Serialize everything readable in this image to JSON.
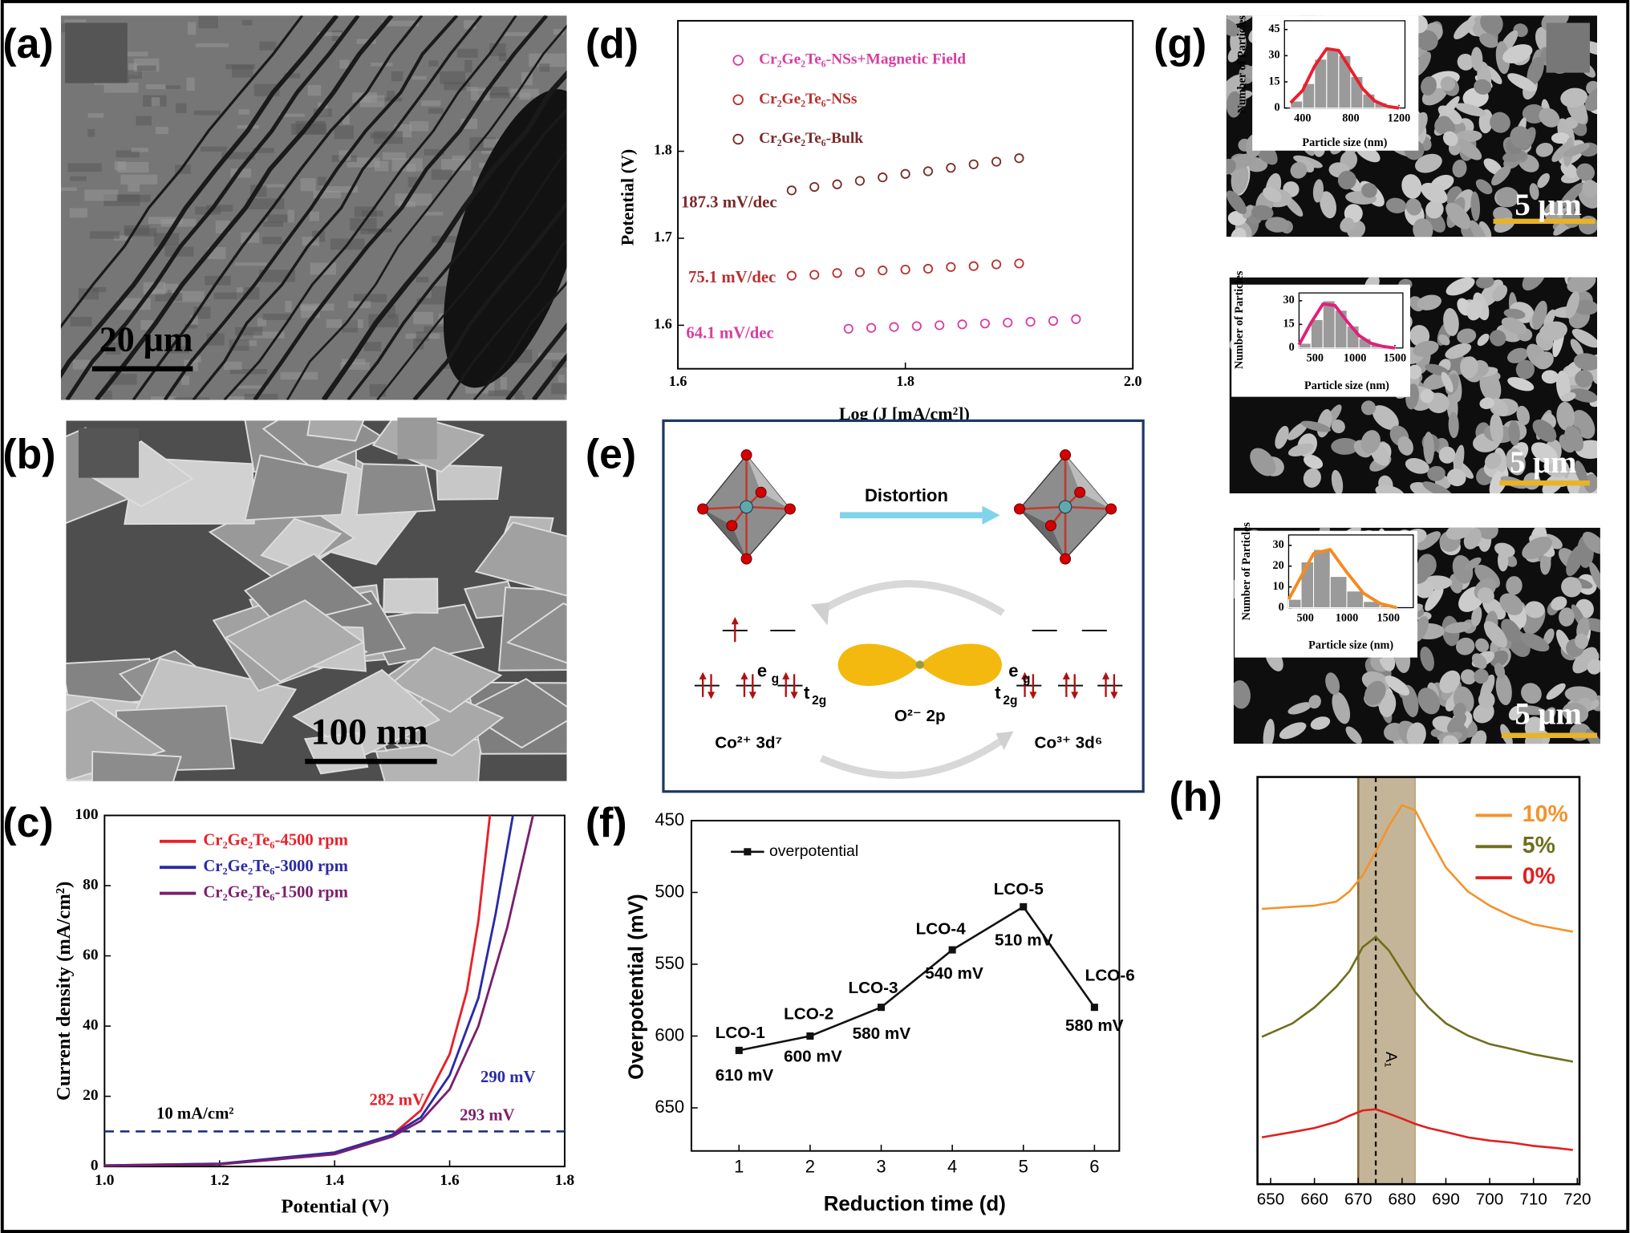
{
  "panels": [
    "(a)",
    "(b)",
    "(c)",
    "(d)",
    "(e)",
    "(f)",
    "(g)",
    "(h)"
  ],
  "scale_bars": [
    "20 μm",
    "100 nm",
    "5 μm",
    "5 μm",
    "5 μm"
  ],
  "diagram": {
    "arrow": "Distortion",
    "left_state": "Co²⁺ 3d⁷",
    "right_state": "Co³⁺ 3d⁶",
    "orbital": "O²⁻ 2p",
    "eg": {
      "main": "e",
      "sub": "g"
    },
    "t2g": {
      "main": "t",
      "sub": "2g"
    }
  },
  "chart_data": [
    {
      "type": "line",
      "xlabel": "Potential (V)",
      "ylabel": "Current density (mA/cm²)",
      "xlim": [
        1.0,
        1.8
      ],
      "ylim": [
        0,
        100
      ],
      "xticks": [
        {
          "value": 1,
          "label": "1.0"
        },
        {
          "value": 1.2,
          "label": "1.2"
        },
        {
          "value": 1.4,
          "label": "1.4"
        },
        {
          "value": 1.6,
          "label": "1.6"
        },
        {
          "value": 1.8,
          "label": "1.8"
        }
      ],
      "yticks": [
        0,
        20,
        40,
        60,
        80,
        100
      ],
      "legend": "upper left",
      "series": [
        {
          "name": "Cr₂Ge₂Te₆-4500 rpm",
          "color": "#e8202a",
          "x": [
            1.0,
            1.2,
            1.3,
            1.4,
            1.5,
            1.55,
            1.6,
            1.63,
            1.65,
            1.67
          ],
          "values": [
            0.3,
            0.8,
            2,
            4,
            9,
            16,
            32,
            50,
            70,
            100
          ]
        },
        {
          "name": "Cr₂Ge₂Te₆-3000 rpm",
          "color": "#2a2aa8",
          "x": [
            1.0,
            1.2,
            1.4,
            1.5,
            1.55,
            1.6,
            1.65,
            1.68,
            1.71
          ],
          "values": [
            0.3,
            0.8,
            4,
            9,
            14,
            26,
            48,
            72,
            100
          ]
        },
        {
          "name": "Cr₂Ge₂Te₆-1500 rpm",
          "color": "#7a1f6e",
          "x": [
            1.0,
            1.2,
            1.4,
            1.5,
            1.55,
            1.6,
            1.65,
            1.7,
            1.745
          ],
          "values": [
            0.2,
            0.6,
            3.5,
            8.5,
            13,
            22,
            40,
            68,
            100
          ]
        }
      ],
      "reference_line": {
        "value": 10,
        "label": "10 mA/cm²"
      },
      "annotations": [
        "282 mV",
        "290 mV",
        "293 mV"
      ]
    },
    {
      "type": "scatter",
      "xlabel": "Log (J [mA/cm²])",
      "ylabel": "Potential (V)",
      "xlim": [
        1.6,
        2.0
      ],
      "ylim": [
        1.55,
        1.95
      ],
      "xticks": [
        {
          "value": 1.6,
          "label": "1.6"
        },
        {
          "value": 1.8,
          "label": "1.8"
        },
        {
          "value": 2,
          "label": "2.0"
        }
      ],
      "yticks": [
        {
          "value": 1.6,
          "label": "1.6"
        },
        {
          "value": 1.7,
          "label": "1.7"
        },
        {
          "value": 1.8,
          "label": "1.8"
        }
      ],
      "legend": "upper left",
      "series": [
        {
          "name": "Cr₂Ge₂Te₆-NSs+Magnetic Field",
          "color": "#d63fa0",
          "x": [
            1.75,
            1.77,
            1.79,
            1.81,
            1.83,
            1.85,
            1.87,
            1.89,
            1.91,
            1.93,
            1.95
          ],
          "values": [
            1.596,
            1.597,
            1.598,
            1.599,
            1.6,
            1.601,
            1.602,
            1.603,
            1.604,
            1.605,
            1.607
          ]
        },
        {
          "name": "Cr₂Ge₂Te₆-NSs",
          "color": "#b83030",
          "x": [
            1.7,
            1.72,
            1.74,
            1.76,
            1.78,
            1.8,
            1.82,
            1.84,
            1.86,
            1.88,
            1.9
          ],
          "values": [
            1.657,
            1.658,
            1.66,
            1.661,
            1.663,
            1.664,
            1.665,
            1.667,
            1.668,
            1.67,
            1.671
          ]
        },
        {
          "name": "Cr₂Ge₂Te₆-Bulk",
          "color": "#7a2a2a",
          "x": [
            1.7,
            1.72,
            1.74,
            1.76,
            1.78,
            1.8,
            1.82,
            1.84,
            1.86,
            1.88,
            1.9
          ],
          "values": [
            1.755,
            1.759,
            1.762,
            1.766,
            1.77,
            1.774,
            1.777,
            1.781,
            1.785,
            1.788,
            1.792
          ]
        }
      ],
      "annotations": [
        "64.1 mV/dec",
        "75.1 mV/dec",
        "187.3 mV/dec"
      ]
    },
    {
      "type": "line",
      "xlabel": "Reduction time (d)",
      "ylabel": "Overpotential (mV)",
      "xlim": [
        0.33,
        6.35
      ],
      "ylim": [
        450,
        680
      ],
      "y_inverted": true,
      "xticks": [
        1,
        2,
        3,
        4,
        5,
        6
      ],
      "yticks": [
        450,
        500,
        550,
        600,
        650
      ],
      "legend": "upper left",
      "markers": true,
      "x": [
        1,
        2,
        3,
        4,
        5,
        6
      ],
      "point_labels": [
        "LCO-1",
        "LCO-2",
        "LCO-3",
        "LCO-4",
        "LCO-5",
        "LCO-6"
      ],
      "series": [
        {
          "name": "overpotential",
          "color": "#111111",
          "values": [
            610,
            600,
            580,
            540,
            510,
            580
          ],
          "value_labels": [
            "610 mV",
            "600 mV",
            "580 mV",
            "540 mV",
            "510 mV",
            "580 mV"
          ]
        }
      ]
    },
    {
      "type": "line",
      "xlim": [
        647,
        720.5
      ],
      "ylim": [
        0,
        100
      ],
      "xticks": [
        650,
        660,
        670,
        680,
        690,
        700,
        710,
        720
      ],
      "legend": "upper right",
      "x": [
        648,
        655,
        660,
        665,
        668,
        671,
        674,
        677,
        680,
        683,
        686,
        690,
        695,
        700,
        705,
        710,
        715,
        719
      ],
      "series": [
        {
          "name": "10%",
          "color": "#f5922a",
          "values": [
            67.6,
            68.1,
            68.4,
            69.4,
            71.9,
            75.8,
            81.6,
            88.0,
            93.1,
            91.8,
            85.5,
            77.8,
            71.9,
            68.4,
            65.8,
            63.8,
            62.8,
            62.0
          ]
        },
        {
          "name": "5%",
          "color": "#6e6e1e",
          "values": [
            36.2,
            39.5,
            43.4,
            48.5,
            52.3,
            58.2,
            60.7,
            57.4,
            52.3,
            47.2,
            43.4,
            39.5,
            36.5,
            34.4,
            33.2,
            31.9,
            30.9,
            30.1
          ]
        },
        {
          "name": "0%",
          "color": "#e02020",
          "values": [
            11.5,
            12.8,
            13.8,
            15.3,
            16.8,
            18.1,
            18.4,
            17.3,
            16.1,
            14.8,
            13.8,
            12.8,
            11.5,
            10.7,
            10.2,
            9.4,
            8.9,
            8.4
          ]
        }
      ],
      "highlight_band": [
        670,
        683
      ],
      "marker_line": {
        "value": 674,
        "label": "A₁"
      }
    },
    {
      "type": "histogram",
      "xlabel": "Particle size (nm)",
      "ylabel": "Number of Particles",
      "xlim": [
        250,
        1250
      ],
      "ylim": [
        0,
        50
      ],
      "xticks": [
        400,
        800,
        1200
      ],
      "yticks": [
        0,
        15,
        30,
        45
      ],
      "bins": [
        300,
        400,
        500,
        600,
        700,
        800,
        900,
        1000,
        1100,
        1200
      ],
      "values": [
        4,
        14,
        28,
        34,
        30,
        18,
        8,
        3,
        1
      ],
      "fit": {
        "color": "#e8202a",
        "x": [
          300,
          400,
          500,
          600,
          700,
          800,
          900,
          1000,
          1100,
          1200
        ],
        "values": [
          3,
          10,
          24,
          34,
          33,
          22,
          11,
          4,
          1,
          0
        ]
      }
    },
    {
      "type": "histogram",
      "xlabel": "Particle size (nm)",
      "ylabel": "Number of Particles",
      "xlim": [
        300,
        1600
      ],
      "ylim": [
        0,
        35
      ],
      "xticks": [
        500,
        1000,
        1500
      ],
      "yticks": [
        0,
        15,
        30
      ],
      "bins": [
        300,
        450,
        600,
        750,
        900,
        1050,
        1200,
        1350,
        1500
      ],
      "values": [
        3,
        18,
        30,
        24,
        14,
        6,
        2,
        1
      ],
      "fit": {
        "color": "#e0207a",
        "x": [
          300,
          450,
          600,
          750,
          900,
          1050,
          1200,
          1350,
          1500
        ],
        "values": [
          2,
          16,
          28,
          27,
          17,
          8,
          3,
          1,
          0
        ]
      }
    },
    {
      "type": "histogram",
      "xlabel": "Particle size (nm)",
      "ylabel": "Number of Particles",
      "xlim": [
        300,
        1800
      ],
      "ylim": [
        0,
        35
      ],
      "xticks": [
        500,
        1000,
        1500
      ],
      "yticks": [
        0,
        10,
        20,
        30
      ],
      "bins": [
        300,
        450,
        600,
        800,
        1000,
        1200,
        1400,
        1600
      ],
      "values": [
        4,
        22,
        28,
        15,
        8,
        3,
        1
      ],
      "fit": {
        "color": "#f58a1f",
        "x": [
          300,
          450,
          600,
          800,
          1000,
          1200,
          1400,
          1600
        ],
        "values": [
          4,
          15,
          26,
          28,
          17,
          7,
          2,
          0
        ]
      }
    }
  ]
}
